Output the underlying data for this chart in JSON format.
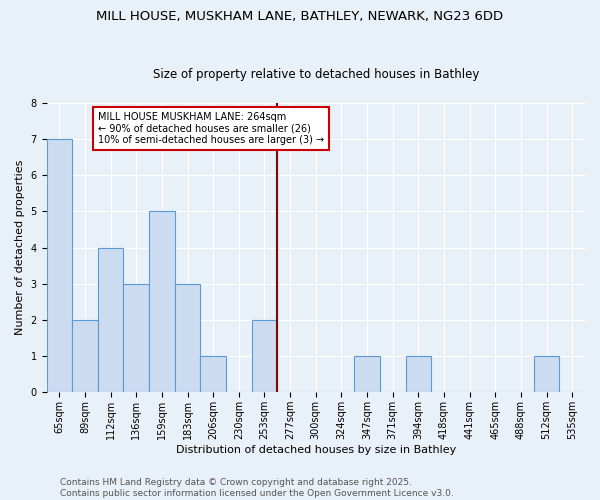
{
  "title1": "MILL HOUSE, MUSKHAM LANE, BATHLEY, NEWARK, NG23 6DD",
  "title2": "Size of property relative to detached houses in Bathley",
  "xlabel": "Distribution of detached houses by size in Bathley",
  "ylabel": "Number of detached properties",
  "categories": [
    "65sqm",
    "89sqm",
    "112sqm",
    "136sqm",
    "159sqm",
    "183sqm",
    "206sqm",
    "230sqm",
    "253sqm",
    "277sqm",
    "300sqm",
    "324sqm",
    "347sqm",
    "371sqm",
    "394sqm",
    "418sqm",
    "441sqm",
    "465sqm",
    "488sqm",
    "512sqm",
    "535sqm"
  ],
  "values": [
    7,
    2,
    4,
    3,
    5,
    3,
    1,
    0,
    2,
    0,
    0,
    0,
    1,
    0,
    1,
    0,
    0,
    0,
    0,
    1,
    0
  ],
  "bar_color": "#ccdcf0",
  "bar_edge_color": "#5b9bd5",
  "highlight_line_index": 8,
  "highlight_color": "#8b0000",
  "annotation_text": "MILL HOUSE MUSKHAM LANE: 264sqm\n← 90% of detached houses are smaller (26)\n10% of semi-detached houses are larger (3) →",
  "annotation_box_color": "#ffffff",
  "annotation_box_edge": "#cc0000",
  "ylim": [
    0,
    8
  ],
  "yticks": [
    0,
    1,
    2,
    3,
    4,
    5,
    6,
    7,
    8
  ],
  "background_color": "#e8f0f8",
  "footer_text": "Contains HM Land Registry data © Crown copyright and database right 2025.\nContains public sector information licensed under the Open Government Licence v3.0.",
  "title_fontsize": 9.5,
  "subtitle_fontsize": 8.5,
  "axis_label_fontsize": 8,
  "tick_fontsize": 7,
  "annotation_fontsize": 7,
  "footer_fontsize": 6.5
}
